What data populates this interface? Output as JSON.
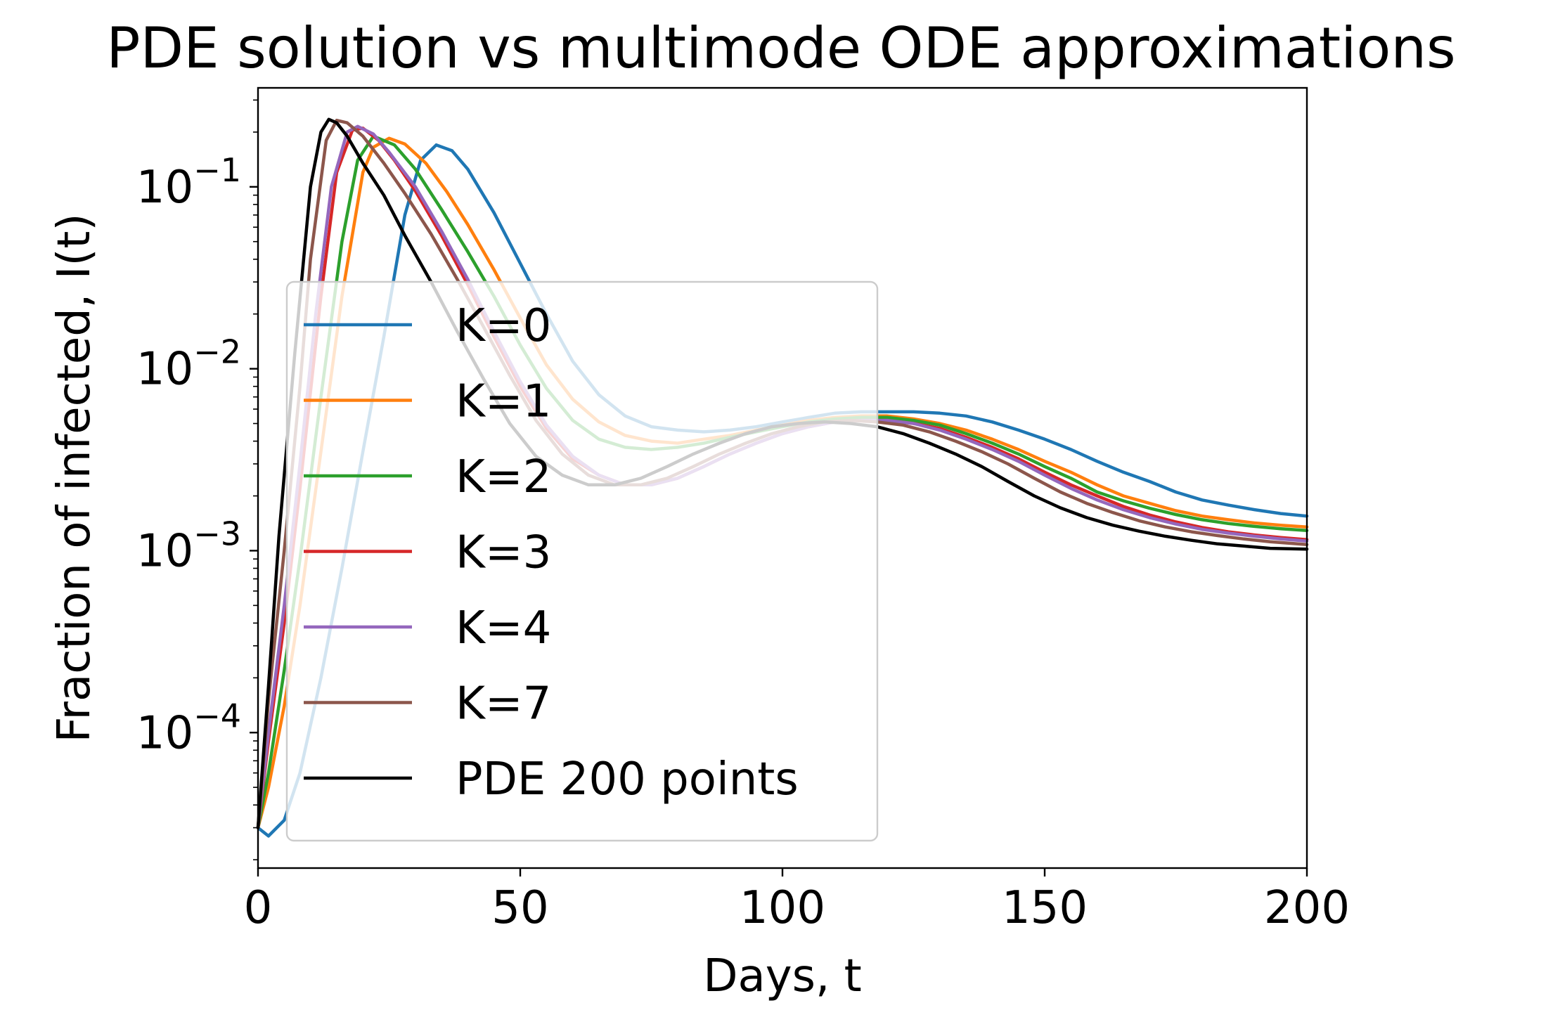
{
  "chart_data": {
    "type": "line",
    "title": "PDE solution vs multimode ODE approximations",
    "xlabel": "Days, t",
    "ylabel": "Fraction of infected, I(t)",
    "xlim": [
      0,
      200
    ],
    "ylim": [
      1.8e-05,
      0.35
    ],
    "yscale": "log",
    "grid": false,
    "legend_position": "center-left",
    "xticks": [
      {
        "value": 0,
        "label": "0"
      },
      {
        "value": 50,
        "label": "50"
      },
      {
        "value": 100,
        "label": "100"
      },
      {
        "value": 150,
        "label": "150"
      },
      {
        "value": 200,
        "label": "200"
      }
    ],
    "yticks": [
      {
        "value": 0.0001,
        "base": "10",
        "exp": "−4"
      },
      {
        "value": 0.001,
        "base": "10",
        "exp": "−3"
      },
      {
        "value": 0.01,
        "base": "10",
        "exp": "−2"
      },
      {
        "value": 0.1,
        "base": "10",
        "exp": "−1"
      }
    ],
    "series": [
      {
        "name": "K=0",
        "color": "#1f77b4",
        "x": [
          0,
          2,
          5,
          8,
          12,
          16,
          20,
          24,
          28,
          31,
          34,
          37,
          40,
          45,
          50,
          55,
          60,
          65,
          70,
          75,
          80,
          85,
          90,
          95,
          100,
          105,
          110,
          115,
          120,
          125,
          130,
          135,
          140,
          145,
          150,
          155,
          160,
          165,
          170,
          175,
          180,
          185,
          190,
          195,
          200
        ],
        "y": [
          3e-05,
          2.7e-05,
          3.3e-05,
          6e-05,
          0.0002,
          0.0008,
          0.0035,
          0.015,
          0.07,
          0.14,
          0.17,
          0.158,
          0.125,
          0.072,
          0.038,
          0.02,
          0.011,
          0.0072,
          0.0055,
          0.0048,
          0.0046,
          0.0045,
          0.0046,
          0.0048,
          0.0051,
          0.0054,
          0.0057,
          0.0058,
          0.0058,
          0.0058,
          0.0057,
          0.0055,
          0.0051,
          0.0046,
          0.0041,
          0.0036,
          0.0031,
          0.0027,
          0.0024,
          0.0021,
          0.0019,
          0.00178,
          0.00168,
          0.0016,
          0.00155
        ]
      },
      {
        "name": "K=1",
        "color": "#ff7f0e",
        "x": [
          0,
          2,
          5,
          8,
          12,
          16,
          20,
          22,
          25,
          28,
          32,
          36,
          40,
          45,
          50,
          55,
          60,
          65,
          70,
          75,
          80,
          85,
          90,
          95,
          100,
          105,
          110,
          115,
          120,
          125,
          130,
          135,
          140,
          145,
          150,
          155,
          160,
          165,
          170,
          175,
          180,
          185,
          190,
          195,
          200
        ],
        "y": [
          3e-05,
          5e-05,
          0.00014,
          0.0005,
          0.0035,
          0.025,
          0.12,
          0.165,
          0.185,
          0.172,
          0.135,
          0.094,
          0.062,
          0.035,
          0.019,
          0.0105,
          0.0068,
          0.0051,
          0.0043,
          0.004,
          0.0039,
          0.0041,
          0.0043,
          0.0046,
          0.0049,
          0.0052,
          0.0054,
          0.0055,
          0.0055,
          0.0053,
          0.005,
          0.0046,
          0.0041,
          0.0036,
          0.0031,
          0.0027,
          0.0023,
          0.002,
          0.00182,
          0.00166,
          0.00155,
          0.00148,
          0.00142,
          0.00138,
          0.00135
        ]
      },
      {
        "name": "K=2",
        "color": "#2ca02c",
        "x": [
          0,
          2,
          5,
          8,
          12,
          16,
          19,
          22,
          26,
          30,
          35,
          40,
          45,
          50,
          55,
          60,
          65,
          70,
          75,
          80,
          85,
          90,
          95,
          100,
          105,
          110,
          115,
          120,
          125,
          130,
          135,
          140,
          145,
          150,
          155,
          160,
          165,
          170,
          175,
          180,
          185,
          190,
          195,
          200
        ],
        "y": [
          3e-05,
          6e-05,
          0.00022,
          0.0009,
          0.007,
          0.05,
          0.14,
          0.19,
          0.17,
          0.125,
          0.075,
          0.044,
          0.025,
          0.0135,
          0.0078,
          0.0052,
          0.0041,
          0.0037,
          0.0036,
          0.0037,
          0.0039,
          0.0042,
          0.0045,
          0.0048,
          0.0051,
          0.0053,
          0.0054,
          0.0054,
          0.0052,
          0.0049,
          0.0044,
          0.0039,
          0.0034,
          0.0029,
          0.0025,
          0.0021,
          0.00188,
          0.00171,
          0.00158,
          0.00148,
          0.00141,
          0.00136,
          0.00132,
          0.00129
        ]
      },
      {
        "name": "K=3",
        "color": "#d62728",
        "x": [
          0,
          2,
          5,
          8,
          12,
          15,
          18,
          20,
          23,
          26,
          30,
          35,
          40,
          45,
          50,
          55,
          60,
          65,
          70,
          75,
          80,
          85,
          90,
          95,
          100,
          105,
          110,
          115,
          120,
          125,
          130,
          135,
          140,
          145,
          150,
          155,
          160,
          165,
          170,
          175,
          180,
          185,
          190,
          195,
          200
        ],
        "y": [
          3e-05,
          9e-05,
          0.0004,
          0.0022,
          0.025,
          0.12,
          0.205,
          0.21,
          0.18,
          0.14,
          0.095,
          0.054,
          0.029,
          0.015,
          0.008,
          0.0047,
          0.0032,
          0.0026,
          0.0023,
          0.0023,
          0.0025,
          0.0029,
          0.0034,
          0.0039,
          0.0044,
          0.0048,
          0.0051,
          0.0052,
          0.0052,
          0.005,
          0.0047,
          0.0042,
          0.0037,
          0.0032,
          0.0027,
          0.0023,
          0.002,
          0.00175,
          0.00157,
          0.00144,
          0.00134,
          0.00127,
          0.00122,
          0.00118,
          0.00115
        ]
      },
      {
        "name": "K=4",
        "color": "#9467bd",
        "x": [
          0,
          2,
          5,
          8,
          11,
          14,
          17,
          19,
          22,
          25,
          30,
          35,
          40,
          45,
          50,
          55,
          60,
          65,
          70,
          75,
          80,
          85,
          90,
          95,
          100,
          105,
          110,
          115,
          120,
          125,
          130,
          135,
          140,
          145,
          150,
          155,
          160,
          165,
          170,
          175,
          180,
          185,
          190,
          195,
          200
        ],
        "y": [
          3e-05,
          0.0001,
          0.0005,
          0.003,
          0.02,
          0.1,
          0.2,
          0.215,
          0.195,
          0.155,
          0.1,
          0.057,
          0.031,
          0.016,
          0.0085,
          0.0049,
          0.0033,
          0.0026,
          0.0023,
          0.0023,
          0.0025,
          0.0029,
          0.0034,
          0.0039,
          0.0044,
          0.0048,
          0.0051,
          0.0052,
          0.0052,
          0.005,
          0.0046,
          0.0041,
          0.0036,
          0.0031,
          0.0026,
          0.0022,
          0.0019,
          0.00168,
          0.00152,
          0.0014,
          0.00131,
          0.00125,
          0.0012,
          0.00116,
          0.00113
        ]
      },
      {
        "name": "K=7",
        "color": "#8c564b",
        "x": [
          0,
          2,
          5,
          8,
          10,
          13,
          15,
          17,
          20,
          24,
          28,
          33,
          38,
          43,
          48,
          53,
          58,
          63,
          68,
          73,
          78,
          83,
          88,
          93,
          98,
          103,
          108,
          113,
          118,
          123,
          128,
          133,
          138,
          143,
          148,
          153,
          158,
          163,
          168,
          173,
          178,
          183,
          188,
          193,
          200
        ],
        "y": [
          3e-05,
          0.00015,
          0.001,
          0.008,
          0.04,
          0.18,
          0.232,
          0.225,
          0.19,
          0.135,
          0.092,
          0.055,
          0.031,
          0.017,
          0.0092,
          0.0052,
          0.0034,
          0.0026,
          0.0023,
          0.0023,
          0.0025,
          0.0029,
          0.0034,
          0.0039,
          0.0044,
          0.0048,
          0.0051,
          0.0052,
          0.0051,
          0.0049,
          0.0045,
          0.004,
          0.0035,
          0.003,
          0.0025,
          0.0021,
          0.00182,
          0.00162,
          0.00146,
          0.00135,
          0.00127,
          0.00121,
          0.00116,
          0.00112,
          0.00108
        ]
      },
      {
        "name": "PDE 200 points",
        "color": "#000000",
        "x": [
          0,
          2,
          4,
          7,
          10,
          12,
          13.5,
          15,
          17,
          20,
          24,
          28,
          33,
          38,
          43,
          48,
          53,
          58,
          63,
          68,
          73,
          78,
          83,
          88,
          93,
          98,
          103,
          108,
          113,
          118,
          123,
          128,
          133,
          138,
          143,
          148,
          153,
          158,
          163,
          168,
          173,
          178,
          183,
          188,
          193,
          200
        ],
        "y": [
          3e-05,
          0.00018,
          0.0012,
          0.012,
          0.1,
          0.2,
          0.235,
          0.225,
          0.19,
          0.135,
          0.09,
          0.054,
          0.03,
          0.016,
          0.0088,
          0.005,
          0.0033,
          0.0026,
          0.0023,
          0.0023,
          0.0025,
          0.0029,
          0.0034,
          0.0039,
          0.0044,
          0.0048,
          0.005,
          0.0051,
          0.005,
          0.0048,
          0.0044,
          0.0039,
          0.0034,
          0.0029,
          0.0024,
          0.002,
          0.00172,
          0.00152,
          0.00138,
          0.00128,
          0.0012,
          0.00114,
          0.00109,
          0.00106,
          0.00103,
          0.00102
        ]
      }
    ]
  }
}
